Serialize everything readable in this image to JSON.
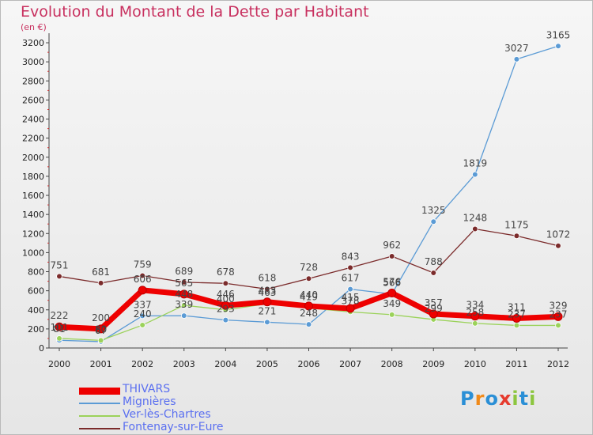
{
  "title": "Evolution du Montant de la Dette par Habitant",
  "unit": "(en €)",
  "logo": {
    "text": "Proxiti",
    "colors": [
      "#2a8fd6",
      "#f08a1a",
      "#2a8fd6",
      "#e63b2e",
      "#8cc63f",
      "#2a8fd6",
      "#8cc63f"
    ]
  },
  "chart_data": {
    "type": "line",
    "title": "Evolution du Montant de la Dette par Habitant",
    "ylabel": "(en €)",
    "x": [
      "2000",
      "2001",
      "2002",
      "2003",
      "2004",
      "2005",
      "2006",
      "2007",
      "2008",
      "2009",
      "2010",
      "2011",
      "2012"
    ],
    "ylim": [
      0,
      3300
    ],
    "yticks": [
      0,
      200,
      400,
      600,
      800,
      1000,
      1200,
      1400,
      1600,
      1800,
      2000,
      2200,
      2400,
      2600,
      2800,
      3000,
      3200
    ],
    "grid": false,
    "legend_position": "bottom-left",
    "series": [
      {
        "name": "THIVARS",
        "color": "#ee0000",
        "values": [
          222,
          200,
          606,
          565,
          446,
          483,
          440,
          415,
          576,
          357,
          334,
          311,
          329
        ],
        "labels": [
          "222",
          "200",
          "606",
          "565",
          "446",
          "483",
          "440",
          "415",
          "576",
          "357",
          "334",
          "311",
          "329"
        ]
      },
      {
        "name": "Mignières",
        "color": "#5b9bd5",
        "values": [
          81,
          67,
          337,
          339,
          293,
          271,
          248,
          617,
          566,
          1325,
          1819,
          3027,
          3165
        ],
        "labels": [
          "81",
          "67",
          "337",
          "339",
          "293",
          "271",
          "248",
          "617",
          "566",
          "1325",
          "1819",
          "3027",
          "3165"
        ]
      },
      {
        "name": "Ver-lès-Chartres",
        "color": "#9bd25a",
        "values": [
          101,
          80,
          240,
          448,
          400,
          463,
          419,
          378,
          349,
          299,
          258,
          237,
          237
        ],
        "labels": [
          "101",
          "80",
          "240",
          "448",
          "400",
          "463",
          "419",
          "378",
          "349",
          "299",
          "258",
          "237",
          "237"
        ]
      },
      {
        "name": "Fontenay-sur-Eure",
        "color": "#7b2b2b",
        "values": [
          751,
          681,
          759,
          689,
          678,
          618,
          728,
          843,
          962,
          788,
          1248,
          1175,
          1072
        ],
        "labels": [
          "751",
          "681",
          "759",
          "689",
          "678",
          "618",
          "728",
          "843",
          "962",
          "788",
          "1248",
          "1175",
          "1072"
        ]
      }
    ]
  }
}
